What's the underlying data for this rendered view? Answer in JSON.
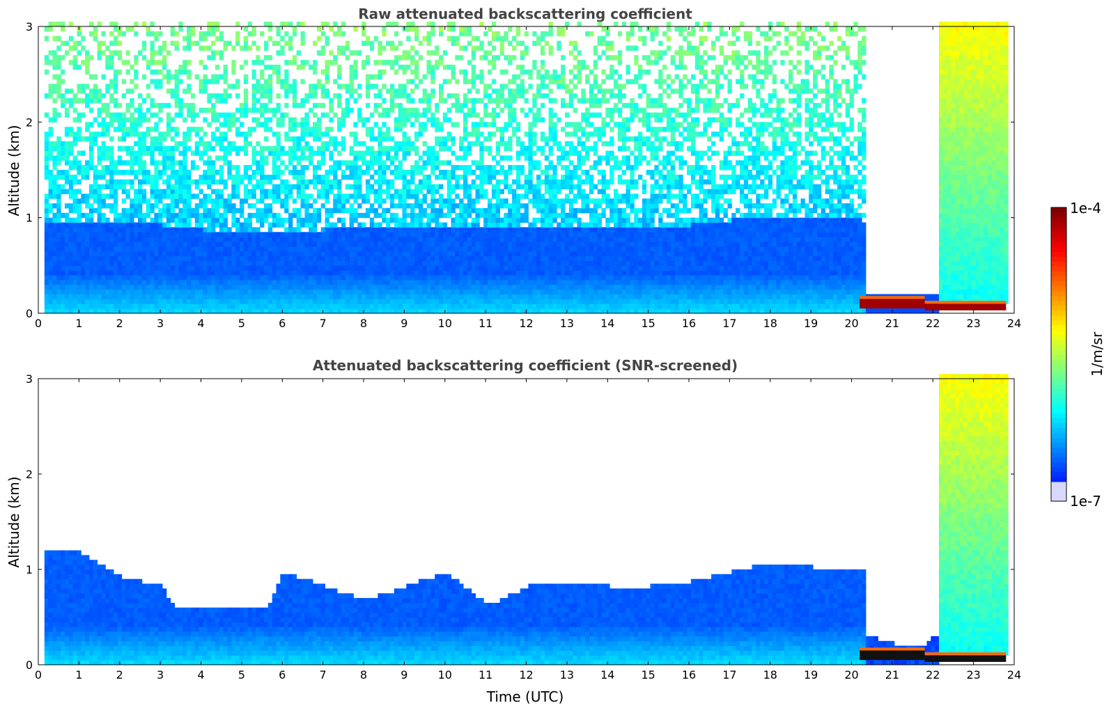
{
  "chart_data": [
    {
      "type": "heatmap",
      "title": "Raw attenuated backscattering coefficient",
      "xlabel": "",
      "ylabel": "Altitude (km)",
      "xlim": [
        0,
        24
      ],
      "ylim": [
        0,
        3
      ],
      "x_ticks": [
        "0",
        "1",
        "2",
        "3",
        "4",
        "5",
        "6",
        "7",
        "8",
        "9",
        "10",
        "11",
        "12",
        "13",
        "14",
        "15",
        "16",
        "17",
        "18",
        "19",
        "20",
        "21",
        "22",
        "23",
        "24"
      ],
      "y_ticks": [
        "0",
        "1",
        "2",
        "3"
      ],
      "colorscale": "jet",
      "colorbar_range": [
        "1e-7",
        "1e-4"
      ],
      "colorbar_label": "1/m/sr",
      "screened": false,
      "data_end_time": 23.8,
      "boundary_layer_top_km": [
        [
          0.2,
          0.95
        ],
        [
          1,
          0.95
        ],
        [
          2,
          0.95
        ],
        [
          3,
          0.9
        ],
        [
          4,
          0.85
        ],
        [
          5,
          0.85
        ],
        [
          6,
          0.8
        ],
        [
          7,
          0.85
        ],
        [
          8,
          0.9
        ],
        [
          9,
          0.9
        ],
        [
          10,
          0.9
        ],
        [
          11,
          0.9
        ],
        [
          12,
          0.9
        ],
        [
          13,
          0.9
        ],
        [
          14,
          0.9
        ],
        [
          15,
          0.9
        ],
        [
          16,
          0.9
        ],
        [
          17,
          0.95
        ],
        [
          18,
          1.0
        ],
        [
          19,
          1.0
        ],
        [
          20.2,
          0.95
        ]
      ],
      "cloud_base_layer": {
        "t_start": 20.2,
        "t_end": 23.8,
        "segments": [
          {
            "t": [
              20.2,
              21.8
            ],
            "base_km": 0.05,
            "top_km": 0.15
          },
          {
            "t": [
              21.8,
              23.8
            ],
            "base_km": 0.03,
            "top_km": 0.1
          }
        ]
      },
      "clear_gap": {
        "t": [
          20.3,
          21.8
        ],
        "note": ""
      },
      "high_signal_band": {
        "t": [
          22.1,
          23.8
        ],
        "min_km": 0.1,
        "max_km": 3
      }
    },
    {
      "type": "heatmap",
      "title": "Attenuated backscattering coefficient (SNR-screened)",
      "xlabel": "Time (UTC)",
      "ylabel": "Altitude (km)",
      "xlim": [
        0,
        24
      ],
      "ylim": [
        0,
        3
      ],
      "x_ticks": [
        "0",
        "1",
        "2",
        "3",
        "4",
        "5",
        "6",
        "7",
        "8",
        "9",
        "10",
        "11",
        "12",
        "13",
        "14",
        "15",
        "16",
        "17",
        "18",
        "19",
        "20",
        "21",
        "22",
        "23",
        "24"
      ],
      "y_ticks": [
        "0",
        "1",
        "2",
        "3"
      ],
      "colorscale": "jet",
      "colorbar_range": [
        "1e-7",
        "1e-4"
      ],
      "colorbar_label": "1/m/sr",
      "screened": true,
      "data_end_time": 23.8,
      "boundary_layer_top_km": [
        [
          0.2,
          1.2
        ],
        [
          1,
          1.15
        ],
        [
          2,
          0.9
        ],
        [
          3,
          0.8
        ],
        [
          3.3,
          0.6
        ],
        [
          4,
          0.55
        ],
        [
          5,
          0.55
        ],
        [
          5.6,
          0.6
        ],
        [
          6,
          0.95
        ],
        [
          7,
          0.8
        ],
        [
          8,
          0.65
        ],
        [
          9,
          0.8
        ],
        [
          10,
          0.95
        ],
        [
          11,
          0.6
        ],
        [
          12,
          0.8
        ],
        [
          13,
          0.85
        ],
        [
          14,
          0.8
        ],
        [
          15,
          0.8
        ],
        [
          16,
          0.85
        ],
        [
          17,
          0.95
        ],
        [
          18,
          1.05
        ],
        [
          19,
          1.0
        ],
        [
          20.2,
          1.0
        ]
      ],
      "low_layer_after_20": [
        [
          20.3,
          0.3
        ],
        [
          21,
          0.2
        ],
        [
          21.8,
          0.2
        ],
        [
          22.1,
          0.3
        ]
      ],
      "cloud_base_layer": {
        "t_start": 20.2,
        "t_end": 23.8,
        "segments": [
          {
            "t": [
              20.2,
              21.8
            ],
            "base_km": 0.05,
            "top_km": 0.15
          },
          {
            "t": [
              21.8,
              23.8
            ],
            "base_km": 0.03,
            "top_km": 0.1
          }
        ]
      },
      "high_signal_band": {
        "t": [
          22.1,
          23.8
        ],
        "min_km": 0.1,
        "max_km": 3
      }
    }
  ],
  "colorbar": {
    "max_label": "1e-4",
    "min_label": "1e-7",
    "unit_label": "1/m/sr",
    "colors": [
      "#e8e8ff",
      "#0000ff",
      "#0080ff",
      "#00ffff",
      "#80ff80",
      "#ffff00",
      "#ff8000",
      "#ff0000",
      "#800000"
    ]
  }
}
